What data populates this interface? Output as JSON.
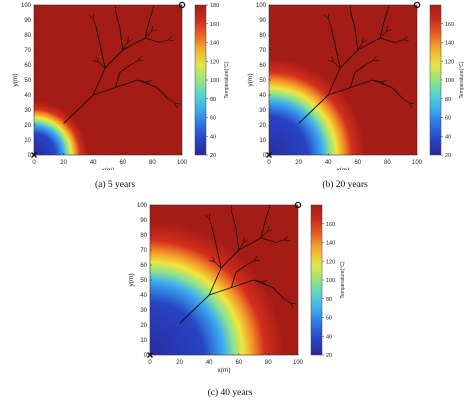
{
  "figure": {
    "captions": [
      "(a) 5 years",
      "(b) 20 years",
      "(c) 40 years"
    ]
  },
  "chart_data": [
    {
      "type": "heatmap",
      "panel_label": "(a) 5 years",
      "years": 5,
      "xlabel": "x(m)",
      "ylabel": "y(m)",
      "xlim": [
        0,
        100
      ],
      "ylim": [
        0,
        100
      ],
      "xticks": [
        "0",
        "20",
        "40",
        "60",
        "80",
        "100"
      ],
      "yticks": [
        "0",
        "10",
        "20",
        "30",
        "40",
        "50",
        "60",
        "70",
        "80",
        "90",
        "100"
      ],
      "colorbar": {
        "label": "Temperature(°C)",
        "min": 20,
        "max": 180,
        "ticks": [
          "20",
          "40",
          "60",
          "80",
          "100",
          "120",
          "140",
          "160",
          "180"
        ]
      },
      "cold_front_radius_m": 25,
      "markers": [
        {
          "name": "injection well",
          "symbol": "x",
          "x": 0,
          "y": 0
        },
        {
          "name": "production well",
          "symbol": "o",
          "x": 100,
          "y": 100
        }
      ]
    },
    {
      "type": "heatmap",
      "panel_label": "(b) 20 years",
      "years": 20,
      "xlabel": "x(m)",
      "ylabel": "y(m)",
      "xlim": [
        0,
        100
      ],
      "ylim": [
        0,
        100
      ],
      "xticks": [
        "0",
        "20",
        "40",
        "60",
        "80",
        "100"
      ],
      "yticks": [
        "0",
        "10",
        "20",
        "30",
        "40",
        "50",
        "60",
        "70",
        "80",
        "90",
        "100"
      ],
      "colorbar": {
        "label": "Temperature(°C)",
        "min": 20,
        "max": 180,
        "ticks": [
          "20",
          "40",
          "60",
          "80",
          "100",
          "120",
          "140",
          "160"
        ]
      },
      "cold_front_radius_m": 45,
      "markers": [
        {
          "name": "injection well",
          "symbol": "x",
          "x": 0,
          "y": 0
        },
        {
          "name": "production well",
          "symbol": "o",
          "x": 100,
          "y": 100
        }
      ]
    },
    {
      "type": "heatmap",
      "panel_label": "(c) 40 years",
      "years": 40,
      "xlabel": "x(m)",
      "ylabel": "y(m)",
      "xlim": [
        0,
        100
      ],
      "ylim": [
        0,
        100
      ],
      "xticks": [
        "0",
        "20",
        "40",
        "60",
        "80",
        "100"
      ],
      "yticks": [
        "0",
        "10",
        "20",
        "30",
        "40",
        "50",
        "60",
        "70",
        "80",
        "90",
        "100"
      ],
      "colorbar": {
        "label": "Temperature(°C)",
        "min": 20,
        "max": 180,
        "ticks": [
          "20",
          "40",
          "60",
          "80",
          "100",
          "120",
          "140",
          "160"
        ]
      },
      "cold_front_radius_m": 62,
      "markers": [
        {
          "name": "injection well",
          "symbol": "x",
          "x": 0,
          "y": 0
        },
        {
          "name": "production well",
          "symbol": "o",
          "x": 100,
          "y": 100
        }
      ]
    }
  ],
  "fracture_network": {
    "trunk": [
      [
        20,
        21
      ],
      [
        40,
        40
      ]
    ],
    "main_branches": [
      [
        [
          40,
          40
        ],
        [
          55,
          45
        ],
        [
          70,
          50
        ],
        [
          83,
          45
        ],
        [
          90,
          38
        ]
      ],
      [
        [
          40,
          40
        ],
        [
          48,
          58
        ],
        [
          60,
          70
        ],
        [
          75,
          78
        ],
        [
          85,
          75
        ]
      ],
      [
        [
          48,
          58
        ],
        [
          45,
          72
        ],
        [
          42,
          85
        ]
      ],
      [
        [
          60,
          70
        ],
        [
          58,
          85
        ],
        [
          55,
          96
        ]
      ],
      [
        [
          75,
          78
        ],
        [
          78,
          90
        ],
        [
          80,
          96
        ]
      ],
      [
        [
          55,
          45
        ],
        [
          58,
          55
        ],
        [
          65,
          60
        ]
      ]
    ]
  }
}
